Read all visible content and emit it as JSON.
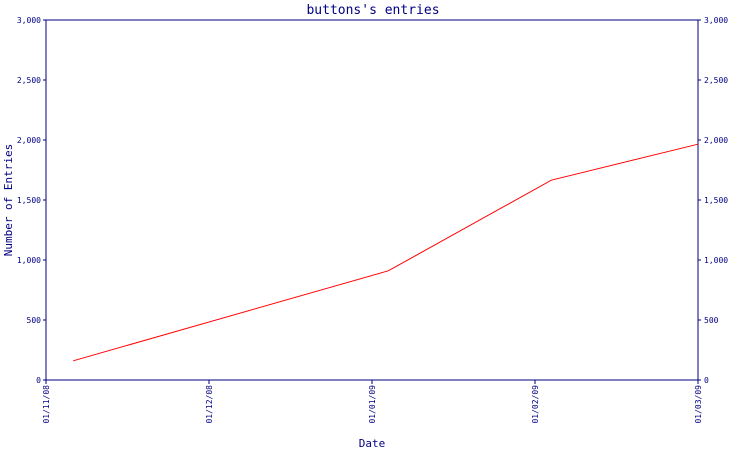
{
  "chart_data": {
    "type": "line",
    "title": "buttons's entries",
    "xlabel": "Date",
    "ylabel": "Number of Entries",
    "x_tick_labels": [
      "01/11/08",
      "01/12/08",
      "01/01/09",
      "01/02/09",
      "01/03/09"
    ],
    "y_tick_labels": [
      "0",
      "500",
      "1,000",
      "1,500",
      "2,000",
      "2,500",
      "3,000"
    ],
    "ylim": [
      0,
      3000
    ],
    "xlim": [
      "2008-11-01",
      "2009-03-01"
    ],
    "grid": false,
    "legend": "none",
    "series": [
      {
        "color": "#ff0000",
        "points": [
          {
            "x": "2008-11-06",
            "y": 160
          },
          {
            "x": "2009-01-03",
            "y": 910
          },
          {
            "x": "2009-02-02",
            "y": 1665
          },
          {
            "x": "2009-03-01",
            "y": 1965
          }
        ]
      }
    ],
    "axis_color": "#000080"
  }
}
